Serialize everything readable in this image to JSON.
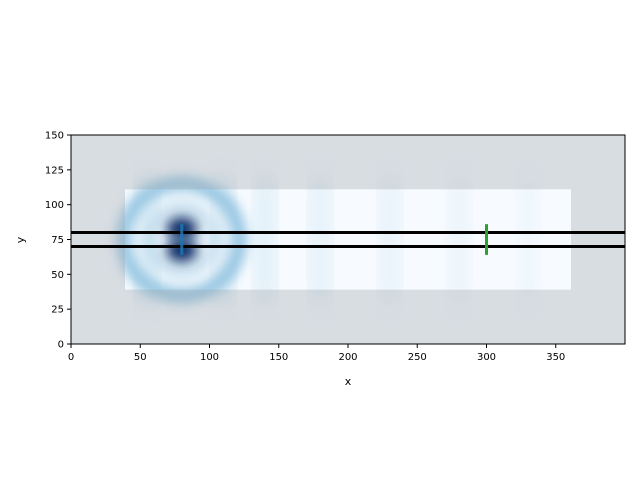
{
  "chart_data": {
    "type": "heatmap",
    "title": "",
    "xlabel": "x",
    "ylabel": "y",
    "xlim": [
      0,
      400
    ],
    "ylim": [
      0,
      150
    ],
    "xticks": [
      0,
      50,
      100,
      150,
      200,
      250,
      300,
      350
    ],
    "yticks": [
      0,
      25,
      50,
      75,
      100,
      125,
      150
    ],
    "grid": false,
    "legend": "none",
    "colormap": "Blues",
    "field": {
      "description_source": "intensity pattern",
      "source_center": [
        80,
        75
      ],
      "guided_band_y": [
        39,
        111
      ],
      "wavefront_x": [
        55,
        110,
        140,
        180,
        230,
        280,
        330
      ]
    },
    "overlays": {
      "pml_regions": [
        {
          "x": [
            0,
            39
          ],
          "y": [
            0,
            150
          ]
        },
        {
          "x": [
            361,
            400
          ],
          "y": [
            0,
            150
          ]
        },
        {
          "x": [
            39,
            361
          ],
          "y": [
            0,
            39
          ]
        },
        {
          "x": [
            39,
            361
          ],
          "y": [
            111,
            150
          ]
        }
      ],
      "waveguide_lines_y": [
        70,
        80
      ],
      "source_marker": {
        "x": 80,
        "y": [
          64,
          86
        ],
        "color": "#1f77b4"
      },
      "monitor_marker": {
        "x": 300,
        "y": [
          64,
          86
        ],
        "color": "#2ca02c"
      }
    }
  }
}
